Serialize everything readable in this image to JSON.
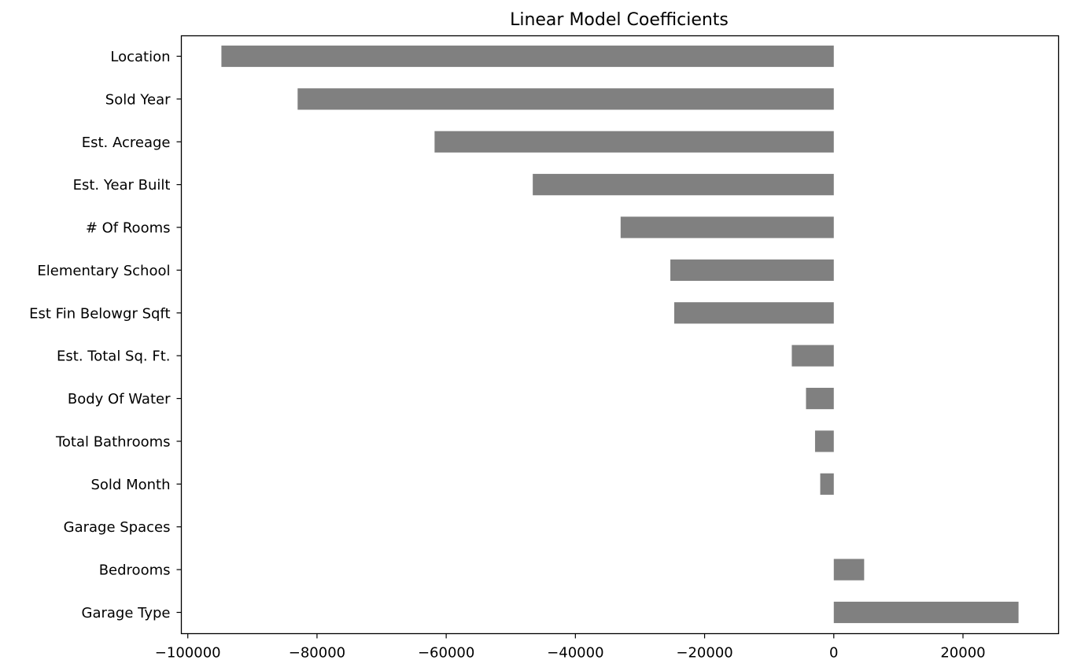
{
  "chart_data": {
    "type": "bar",
    "orientation": "horizontal",
    "title": "Linear Model Coefficients",
    "xlabel": "",
    "ylabel": "",
    "categories": [
      "Location",
      "Sold Year",
      "Est. Acreage",
      "Est. Year Built",
      "# Of Rooms",
      "Elementary School",
      "Est Fin Belowgr Sqft",
      "Est. Total Sq. Ft.",
      "Body Of Water",
      "Total Bathrooms",
      "Sold Month",
      "Garage Spaces",
      "Bedrooms",
      "Garage Type"
    ],
    "values": [
      -94800,
      -83000,
      -61800,
      -46600,
      -33000,
      -25300,
      -24700,
      -6500,
      -4300,
      -2900,
      -2100,
      0,
      4700,
      28600
    ],
    "xlim": [
      -101000,
      34800
    ],
    "xticks": [
      -100000,
      -80000,
      -60000,
      -40000,
      -20000,
      0,
      20000
    ],
    "xtick_labels": [
      "−100000",
      "−80000",
      "−60000",
      "−40000",
      "−20000",
      "0",
      "20000"
    ],
    "bar_color": "#808080",
    "grid": false,
    "legend": "none"
  }
}
